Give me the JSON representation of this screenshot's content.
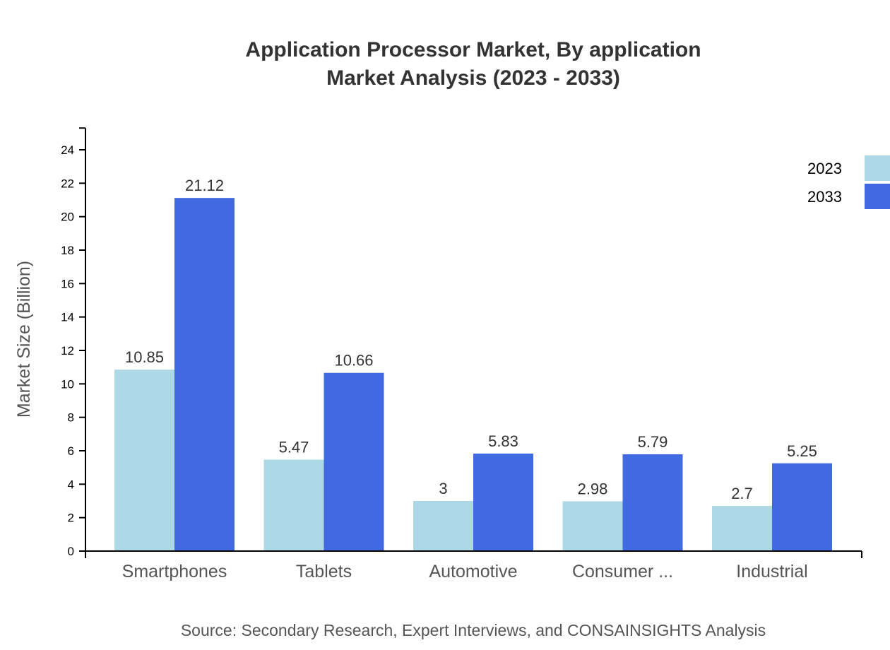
{
  "chart_data": {
    "type": "bar",
    "title": "Application Processor Market, By application",
    "subtitle": "Market Analysis (2023 - 2033)",
    "xlabel": "",
    "ylabel": "Market Size (Billion)",
    "ylim": [
      0,
      25.3
    ],
    "yticks": [
      0,
      2,
      4,
      6,
      8,
      10,
      12,
      14,
      16,
      18,
      20,
      22,
      24
    ],
    "categories": [
      "Smartphones",
      "Tablets",
      "Automotive",
      "Consumer ...",
      "Industrial"
    ],
    "series": [
      {
        "name": "2023",
        "color": "#ADD8E6",
        "values": [
          10.85,
          5.47,
          3,
          2.98,
          2.7
        ]
      },
      {
        "name": "2033",
        "color": "#4169E1",
        "values": [
          21.12,
          10.66,
          5.83,
          5.79,
          5.25
        ]
      }
    ],
    "legend_position": "top-right",
    "grid": false,
    "source": "Source: Secondary Research, Expert Interviews, and CONSAINSIGHTS Analysis"
  }
}
